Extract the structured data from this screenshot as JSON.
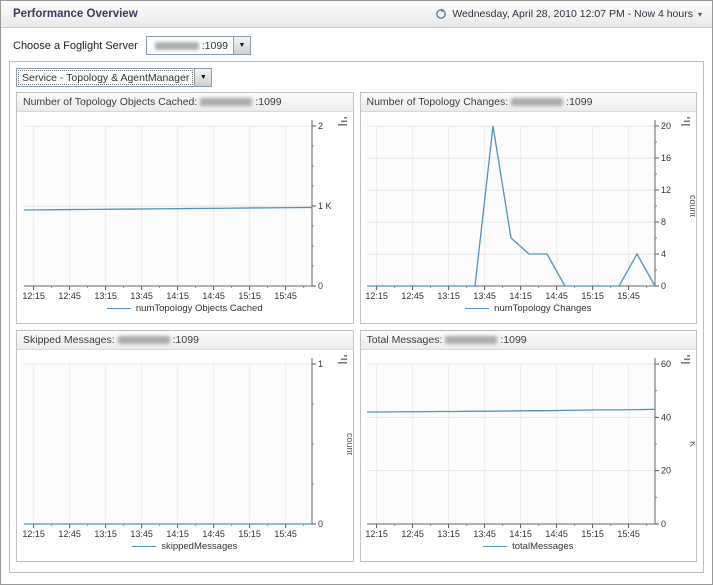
{
  "page": {
    "title": "Performance Overview",
    "time_range_text": "Wednesday, April 28, 2010 12:07 PM - Now 4 hours"
  },
  "server_chooser": {
    "label": "Choose a Foglight Server",
    "selected_port": ":1099"
  },
  "service_selector": {
    "selected": "Service - Topology & AgentManager"
  },
  "icons": {
    "dropdown_arrow": "▼",
    "chevron_down": "▾",
    "time_range": "circular-arrow"
  },
  "accent": {
    "line_color": "#4f94b8",
    "axis_color": "#666666",
    "grid_color": "#e4e4e4"
  },
  "chart_data": [
    {
      "type": "line",
      "title_prefix": "Number of Topology Objects Cached:",
      "title_port": ":1099",
      "legend": "numTopology Objects Cached",
      "y_axis_label": "",
      "y_min": 0,
      "y_max": 2,
      "y_ticks": [
        "0",
        "1 K",
        "2"
      ],
      "y_minor_subdiv": 4,
      "x_domain_minutes": [
        0,
        240
      ],
      "x_label_minutes": [
        8,
        38,
        68,
        98,
        128,
        158,
        188,
        218
      ],
      "x_tick_labels": [
        "12:15",
        "12:45",
        "13:15",
        "13:45",
        "14:15",
        "14:45",
        "15:15",
        "15:45"
      ],
      "x_minutes": [
        0,
        15,
        30,
        45,
        60,
        75,
        90,
        105,
        120,
        135,
        150,
        165,
        180,
        195,
        210,
        225,
        240
      ],
      "values": [
        0.95,
        0.952,
        0.954,
        0.956,
        0.958,
        0.96,
        0.962,
        0.964,
        0.966,
        0.968,
        0.97,
        0.972,
        0.974,
        0.976,
        0.978,
        0.98,
        0.982
      ]
    },
    {
      "type": "line",
      "title_prefix": "Number of Topology Changes:",
      "title_port": ":1099",
      "legend": "numTopology Changes",
      "y_axis_label": "count",
      "y_min": 0,
      "y_max": 20,
      "y_ticks": [
        "0",
        "4",
        "8",
        "12",
        "16",
        "20"
      ],
      "y_minor_subdiv": 2,
      "x_domain_minutes": [
        0,
        240
      ],
      "x_label_minutes": [
        8,
        38,
        68,
        98,
        128,
        158,
        188,
        218
      ],
      "x_tick_labels": [
        "12:15",
        "12:45",
        "13:15",
        "13:45",
        "14:15",
        "14:45",
        "15:15",
        "15:45"
      ],
      "x_minutes": [
        0,
        15,
        30,
        45,
        60,
        75,
        90,
        105,
        120,
        135,
        150,
        165,
        180,
        195,
        210,
        225,
        240
      ],
      "values": [
        0,
        0,
        0,
        0,
        0,
        0,
        0,
        20,
        6,
        4,
        4,
        0,
        0,
        0,
        0,
        4,
        0
      ]
    },
    {
      "type": "line",
      "title_prefix": "Skipped Messages:",
      "title_port": ":1099",
      "legend": "skippedMessages",
      "y_axis_label": "count",
      "y_min": 0,
      "y_max": 1,
      "y_ticks": [
        "0",
        "1"
      ],
      "y_minor_subdiv": 4,
      "x_domain_minutes": [
        0,
        240
      ],
      "x_label_minutes": [
        8,
        38,
        68,
        98,
        128,
        158,
        188,
        218
      ],
      "x_tick_labels": [
        "12:15",
        "12:45",
        "13:15",
        "13:45",
        "14:15",
        "14:45",
        "15:15",
        "15:45"
      ],
      "x_minutes": [
        0,
        15,
        30,
        45,
        60,
        75,
        90,
        105,
        120,
        135,
        150,
        165,
        180,
        195,
        210,
        225,
        240
      ],
      "values": [
        0,
        0,
        0,
        0,
        0,
        0,
        0,
        0,
        0,
        0,
        0,
        0,
        0,
        0,
        0,
        0,
        0
      ]
    },
    {
      "type": "line",
      "title_prefix": "Total Messages:",
      "title_port": ":1099",
      "legend": "totalMessages",
      "y_axis_label": "K",
      "y_min": 0,
      "y_max": 60,
      "y_ticks": [
        "0",
        "20",
        "40",
        "60"
      ],
      "y_minor_subdiv": 2,
      "x_domain_minutes": [
        0,
        240
      ],
      "x_label_minutes": [
        8,
        38,
        68,
        98,
        128,
        158,
        188,
        218
      ],
      "x_tick_labels": [
        "12:15",
        "12:45",
        "13:15",
        "13:45",
        "14:15",
        "14:45",
        "15:15",
        "15:45"
      ],
      "x_minutes": [
        0,
        15,
        30,
        45,
        60,
        75,
        90,
        105,
        120,
        135,
        150,
        165,
        180,
        195,
        210,
        225,
        240
      ],
      "values": [
        42,
        42,
        42.1,
        42.1,
        42.2,
        42.2,
        42.3,
        42.3,
        42.4,
        42.5,
        42.5,
        42.6,
        42.7,
        42.8,
        42.8,
        42.9,
        43
      ]
    }
  ]
}
